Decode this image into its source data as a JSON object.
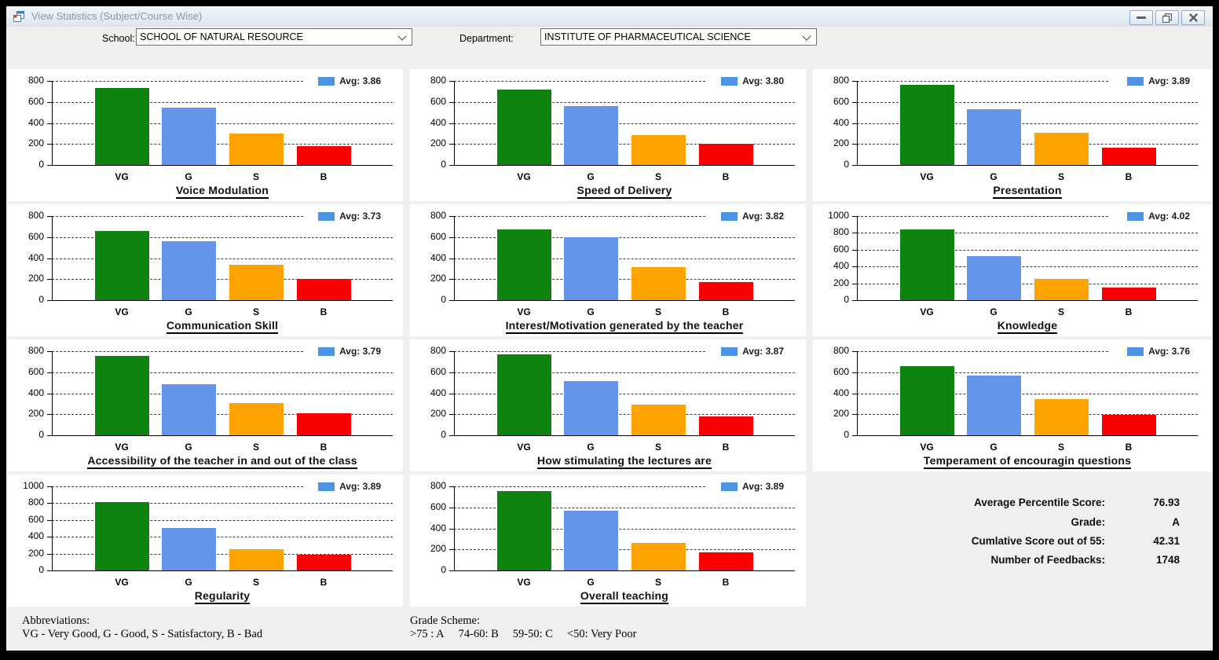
{
  "window": {
    "title": "View Statistics (Subject/Course Wise)"
  },
  "toolbar": {
    "school_label": "School:",
    "school_value": "SCHOOL OF NATURAL RESOURCE",
    "department_label": "Department:",
    "department_value": "INSTITUTE OF PHARMACEUTICAL SCIENCE"
  },
  "colors": {
    "VG": "#0E830E",
    "G": "#6495E8",
    "S": "#FFA300",
    "B": "#FA0000",
    "legend_swatch": "#4E92E4"
  },
  "chart_data": [
    {
      "type": "bar",
      "title": "Voice Modulation",
      "categories": [
        "VG",
        "G",
        "S",
        "B"
      ],
      "values": [
        735,
        545,
        300,
        180
      ],
      "avg": 3.86,
      "legend": "Avg: 3.86",
      "ylim": [
        0,
        800
      ],
      "yticks": [
        0,
        200,
        400,
        600,
        800
      ]
    },
    {
      "type": "bar",
      "title": "Speed of Delivery",
      "categories": [
        "VG",
        "G",
        "S",
        "B"
      ],
      "values": [
        720,
        560,
        285,
        200
      ],
      "avg": 3.8,
      "legend": "Avg: 3.80",
      "ylim": [
        0,
        800
      ],
      "yticks": [
        0,
        200,
        400,
        600,
        800
      ]
    },
    {
      "type": "bar",
      "title": "Presentation",
      "categories": [
        "VG",
        "G",
        "S",
        "B"
      ],
      "values": [
        765,
        530,
        305,
        165
      ],
      "avg": 3.89,
      "legend": "Avg: 3.89",
      "ylim": [
        0,
        800
      ],
      "yticks": [
        0,
        200,
        400,
        600,
        800
      ]
    },
    {
      "type": "bar",
      "title": "Communication Skill",
      "categories": [
        "VG",
        "G",
        "S",
        "B"
      ],
      "values": [
        655,
        560,
        340,
        200
      ],
      "avg": 3.73,
      "legend": "Avg: 3.73",
      "ylim": [
        0,
        800
      ],
      "yticks": [
        0,
        200,
        400,
        600,
        800
      ]
    },
    {
      "type": "bar",
      "title": "Interest/Motivation generated by the teacher",
      "categories": [
        "VG",
        "G",
        "S",
        "B"
      ],
      "values": [
        670,
        595,
        315,
        172
      ],
      "avg": 3.82,
      "legend": "Avg: 3.82",
      "ylim": [
        0,
        800
      ],
      "yticks": [
        0,
        200,
        400,
        600,
        800
      ]
    },
    {
      "type": "bar",
      "title": "Knowledge",
      "categories": [
        "VG",
        "G",
        "S",
        "B"
      ],
      "values": [
        840,
        520,
        250,
        150
      ],
      "avg": 4.02,
      "legend": "Avg: 4.02",
      "ylim": [
        0,
        1000
      ],
      "yticks": [
        0,
        200,
        400,
        600,
        800,
        1000
      ]
    },
    {
      "type": "bar",
      "title": "Accessibility of the teacher in and out of the class",
      "categories": [
        "VG",
        "G",
        "S",
        "B"
      ],
      "values": [
        755,
        485,
        305,
        210
      ],
      "avg": 3.79,
      "legend": "Avg: 3.79",
      "ylim": [
        0,
        800
      ],
      "yticks": [
        0,
        200,
        400,
        600,
        800
      ]
    },
    {
      "type": "bar",
      "title": "How stimulating the lectures are",
      "categories": [
        "VG",
        "G",
        "S",
        "B"
      ],
      "values": [
        770,
        515,
        290,
        180
      ],
      "avg": 3.87,
      "legend": "Avg: 3.87",
      "ylim": [
        0,
        800
      ],
      "yticks": [
        0,
        200,
        400,
        600,
        800
      ]
    },
    {
      "type": "bar",
      "title": "Temperament of encouragin questions",
      "categories": [
        "VG",
        "G",
        "S",
        "B"
      ],
      "values": [
        660,
        565,
        345,
        195
      ],
      "avg": 3.76,
      "legend": "Avg: 3.76",
      "ylim": [
        0,
        800
      ],
      "yticks": [
        0,
        200,
        400,
        600,
        800
      ]
    },
    {
      "type": "bar",
      "title": "Regularity",
      "categories": [
        "VG",
        "G",
        "S",
        "B"
      ],
      "values": [
        810,
        500,
        255,
        185
      ],
      "avg": 3.89,
      "legend": "Avg: 3.89",
      "ylim": [
        0,
        1000
      ],
      "yticks": [
        0,
        200,
        400,
        600,
        800,
        1000
      ]
    },
    {
      "type": "bar",
      "title": "Overall teaching",
      "categories": [
        "VG",
        "G",
        "S",
        "B"
      ],
      "values": [
        755,
        565,
        265,
        170
      ],
      "avg": 3.89,
      "legend": "Avg: 3.89",
      "ylim": [
        0,
        800
      ],
      "yticks": [
        0,
        200,
        400,
        600,
        800
      ]
    }
  ],
  "summary": {
    "rows": [
      {
        "label": "Average Percentile Score:",
        "value": "76.93"
      },
      {
        "label": "Grade:",
        "value": "A"
      },
      {
        "label": "Cumlative Score out of 55:",
        "value": "42.31"
      },
      {
        "label": "Number of Feedbacks:",
        "value": "1748"
      }
    ]
  },
  "footnotes": {
    "abbreviations_title": "Abbreviations:",
    "abbreviations_text": "VG - Very Good, G - Good, S - Satisfactory, B - Bad",
    "grade_scheme_title": "Grade Scheme:",
    "grade_scheme_items": [
      ">75 : A",
      "74-60: B",
      "59-50: C",
      "<50: Very Poor"
    ]
  }
}
